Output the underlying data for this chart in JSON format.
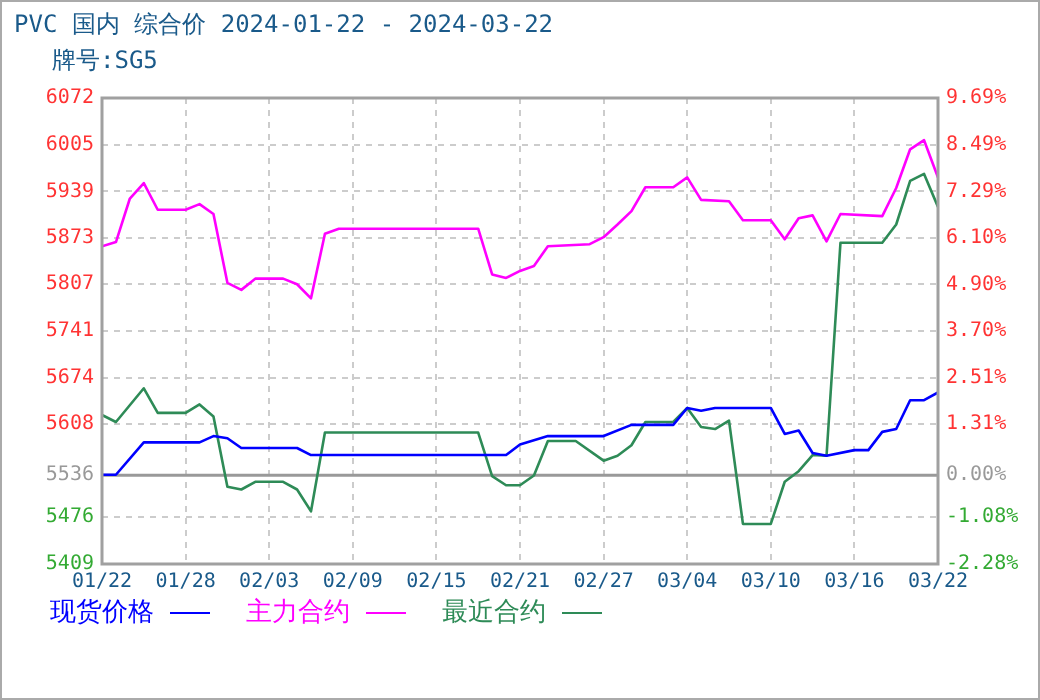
{
  "chart_data": {
    "type": "line",
    "title": "PVC 国内 综合价 2024-01-22 - 2024-03-22",
    "subtitle": "牌号:SG5",
    "xlim": [
      "2024-01-22",
      "2024-03-22"
    ],
    "xticks": [
      {
        "value": "2024-01-22",
        "label": "01/22"
      },
      {
        "value": "2024-01-28",
        "label": "01/28"
      },
      {
        "value": "2024-02-03",
        "label": "02/03"
      },
      {
        "value": "2024-02-09",
        "label": "02/09"
      },
      {
        "value": "2024-02-15",
        "label": "02/15"
      },
      {
        "value": "2024-02-21",
        "label": "02/21"
      },
      {
        "value": "2024-02-27",
        "label": "02/27"
      },
      {
        "value": "2024-03-04",
        "label": "03/04"
      },
      {
        "value": "2024-03-10",
        "label": "03/10"
      },
      {
        "value": "2024-03-16",
        "label": "03/16"
      },
      {
        "value": "2024-03-22",
        "label": "03/22"
      }
    ],
    "ylim": [
      5409,
      6072
    ],
    "yticks": [
      5409,
      5476,
      5536,
      5608,
      5674,
      5741,
      5807,
      5873,
      5939,
      6005,
      6072
    ],
    "y2lim": [
      -2.28,
      9.69
    ],
    "y2ticks": [
      {
        "value": -2.28,
        "label": "-2.28%"
      },
      {
        "value": -1.08,
        "label": "-1.08%"
      },
      {
        "value": 0,
        "label": "0.00%"
      },
      {
        "value": 1.31,
        "label": "1.31%"
      },
      {
        "value": 2.51,
        "label": "2.51%"
      },
      {
        "value": 3.7,
        "label": "3.70%"
      },
      {
        "value": 4.9,
        "label": "4.90%"
      },
      {
        "value": 6.1,
        "label": "6.10%"
      },
      {
        "value": 7.29,
        "label": "7.29%"
      },
      {
        "value": 8.49,
        "label": "8.49%"
      },
      {
        "value": 9.69,
        "label": "9.69%"
      }
    ],
    "ref_lines": [
      {
        "axis": "y2",
        "value": 0,
        "color": "#999999"
      }
    ],
    "grid": true,
    "legend": "bottom",
    "series": [
      {
        "name": "现货价格",
        "color": "#0000ff",
        "x": [
          "2024-01-22",
          "2024-01-23",
          "2024-01-25",
          "2024-01-29",
          "2024-01-30",
          "2024-01-31",
          "2024-02-01",
          "2024-02-05",
          "2024-02-06",
          "2024-02-20",
          "2024-02-21",
          "2024-02-23",
          "2024-02-27",
          "2024-02-29",
          "2024-03-03",
          "2024-03-04",
          "2024-03-05",
          "2024-03-06",
          "2024-03-10",
          "2024-03-11",
          "2024-03-12",
          "2024-03-13",
          "2024-03-14",
          "2024-03-16",
          "2024-03-17",
          "2024-03-18",
          "2024-03-19",
          "2024-03-20",
          "2024-03-21",
          "2024-03-22"
        ],
        "values": [
          5536,
          5536,
          5582,
          5582,
          5591,
          5588,
          5574,
          5574,
          5564,
          5564,
          5579,
          5591,
          5591,
          5607,
          5607,
          5631,
          5627,
          5631,
          5631,
          5594,
          5599,
          5567,
          5563,
          5571,
          5571,
          5597,
          5601,
          5642,
          5642,
          5653
        ]
      },
      {
        "name": "主力合约",
        "color": "#ff00ff",
        "x": [
          "2024-01-22",
          "2024-01-23",
          "2024-01-24",
          "2024-01-25",
          "2024-01-26",
          "2024-01-28",
          "2024-01-29",
          "2024-01-30",
          "2024-01-31",
          "2024-02-01",
          "2024-02-02",
          "2024-02-04",
          "2024-02-05",
          "2024-02-06",
          "2024-02-07",
          "2024-02-08",
          "2024-02-18",
          "2024-02-19",
          "2024-02-20",
          "2024-02-21",
          "2024-02-22",
          "2024-02-23",
          "2024-02-26",
          "2024-02-27",
          "2024-02-28",
          "2024-02-29",
          "2024-03-01",
          "2024-03-03",
          "2024-03-04",
          "2024-03-05",
          "2024-03-07",
          "2024-03-08",
          "2024-03-10",
          "2024-03-11",
          "2024-03-12",
          "2024-03-13",
          "2024-03-14",
          "2024-03-15",
          "2024-03-18",
          "2024-03-19",
          "2024-03-20",
          "2024-03-21",
          "2024-03-22"
        ],
        "values": [
          5861,
          5867,
          5929,
          5951,
          5913,
          5913,
          5921,
          5907,
          5809,
          5799,
          5815,
          5815,
          5807,
          5787,
          5879,
          5886,
          5886,
          5821,
          5816,
          5826,
          5833,
          5861,
          5864,
          5874,
          5892,
          5911,
          5945,
          5945,
          5959,
          5927,
          5925,
          5898,
          5898,
          5871,
          5901,
          5905,
          5868,
          5907,
          5904,
          5944,
          5999,
          6012,
          5959
        ]
      },
      {
        "name": "最近合约",
        "color": "#2e8b57",
        "x": [
          "2024-01-22",
          "2024-01-23",
          "2024-01-25",
          "2024-01-26",
          "2024-01-28",
          "2024-01-29",
          "2024-01-30",
          "2024-01-31",
          "2024-02-01",
          "2024-02-02",
          "2024-02-04",
          "2024-02-05",
          "2024-02-06",
          "2024-02-07",
          "2024-02-18",
          "2024-02-19",
          "2024-02-20",
          "2024-02-21",
          "2024-02-22",
          "2024-02-23",
          "2024-02-25",
          "2024-02-27",
          "2024-02-28",
          "2024-02-29",
          "2024-03-01",
          "2024-03-03",
          "2024-03-04",
          "2024-03-05",
          "2024-03-06",
          "2024-03-07",
          "2024-03-08",
          "2024-03-10",
          "2024-03-11",
          "2024-03-12",
          "2024-03-13",
          "2024-03-14",
          "2024-03-15",
          "2024-03-18",
          "2024-03-19",
          "2024-03-20",
          "2024-03-21",
          "2024-03-22"
        ],
        "values": [
          5621,
          5611,
          5659,
          5624,
          5624,
          5636,
          5619,
          5519,
          5515,
          5526,
          5526,
          5515,
          5484,
          5596,
          5596,
          5534,
          5521,
          5521,
          5535,
          5584,
          5584,
          5556,
          5563,
          5578,
          5611,
          5611,
          5631,
          5604,
          5601,
          5613,
          5466,
          5466,
          5526,
          5541,
          5564,
          5563,
          5866,
          5866,
          5892,
          5954,
          5964,
          5917
        ]
      }
    ]
  }
}
